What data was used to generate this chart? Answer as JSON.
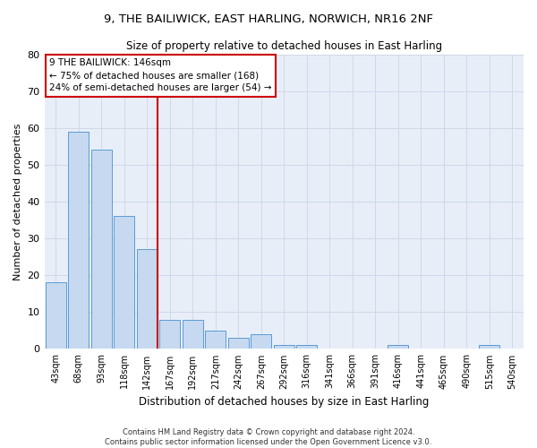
{
  "title1": "9, THE BAILIWICK, EAST HARLING, NORWICH, NR16 2NF",
  "title2": "Size of property relative to detached houses in East Harling",
  "xlabel": "Distribution of detached houses by size in East Harling",
  "ylabel": "Number of detached properties",
  "footnote1": "Contains HM Land Registry data © Crown copyright and database right 2024.",
  "footnote2": "Contains public sector information licensed under the Open Government Licence v3.0.",
  "bar_labels": [
    "43sqm",
    "68sqm",
    "93sqm",
    "118sqm",
    "142sqm",
    "167sqm",
    "192sqm",
    "217sqm",
    "242sqm",
    "267sqm",
    "292sqm",
    "316sqm",
    "341sqm",
    "366sqm",
    "391sqm",
    "416sqm",
    "441sqm",
    "465sqm",
    "490sqm",
    "515sqm",
    "540sqm"
  ],
  "bar_values": [
    18,
    59,
    54,
    36,
    27,
    8,
    8,
    5,
    3,
    4,
    1,
    1,
    0,
    0,
    0,
    1,
    0,
    0,
    0,
    1,
    0
  ],
  "bar_color": "#c6d9f0",
  "bar_edgecolor": "#5b9bd5",
  "highlight_bar_index": 4,
  "annotation_text1": "9 THE BAILIWICK: 146sqm",
  "annotation_text2": "← 75% of detached houses are smaller (168)",
  "annotation_text3": "24% of semi-detached houses are larger (54) →",
  "annotation_box_color": "#cc0000",
  "ylim": [
    0,
    80
  ],
  "yticks": [
    0,
    10,
    20,
    30,
    40,
    50,
    60,
    70,
    80
  ],
  "grid_color": "#d0d8e8",
  "axes_bg_color": "#e8eef8",
  "fig_bg_color": "#ffffff"
}
